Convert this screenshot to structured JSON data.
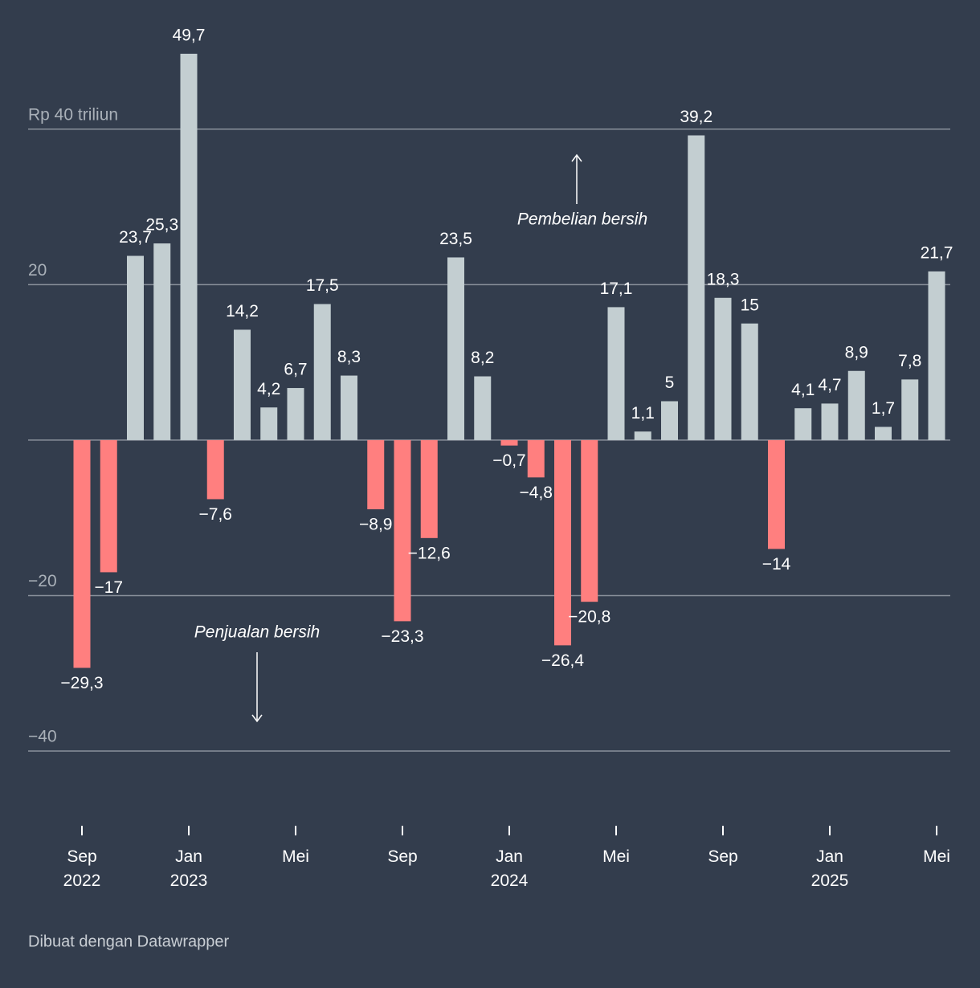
{
  "chart_data": {
    "type": "bar",
    "categories": [
      "Sep 2022",
      null,
      null,
      null,
      "Jan 2023",
      null,
      null,
      null,
      "Mei",
      null,
      null,
      null,
      "Sep",
      null,
      null,
      null,
      "Jan 2024",
      null,
      null,
      null,
      "Mei",
      null,
      null,
      null,
      "Sep",
      null,
      null,
      null,
      "Jan 2025",
      null,
      null,
      null,
      "Mei"
    ],
    "values": [
      -29.3,
      -17,
      23.7,
      25.3,
      49.7,
      -7.6,
      14.2,
      4.2,
      6.7,
      17.5,
      8.3,
      -8.9,
      -23.3,
      -12.6,
      23.5,
      8.2,
      -0.7,
      -4.8,
      -26.4,
      -20.8,
      17.1,
      1.1,
      5,
      39.2,
      18.3,
      15,
      -14,
      4.1,
      4.7,
      8.9,
      1.7,
      7.8,
      21.7
    ],
    "value_labels": [
      "−29,3",
      "−17",
      "23,7",
      "25,3",
      "49,7",
      "−7,6",
      "14,2",
      "4,2",
      "6,7",
      "17,5",
      "8,3",
      "−8,9",
      "−23,3",
      "−12,6",
      "23,5",
      "8,2",
      "−0,7",
      "−4,8",
      "−26,4",
      "−20,8",
      "17,1",
      "1,1",
      "5",
      "39,2",
      "18,3",
      "15",
      "−14",
      "4,1",
      "4,7",
      "8,9",
      "1,7",
      "7,8",
      "21,7"
    ],
    "color": "#c3ced1",
    "negative_color": "#ff7f7f",
    "ylim": [
      -40,
      50
    ],
    "yticks": [
      {
        "value": -40,
        "label": "−40"
      },
      {
        "value": -20,
        "label": "−20"
      },
      20,
      {
        "value": 40,
        "label": "Rp 40 triliun"
      }
    ],
    "grid": true,
    "annotations": [
      "Pembelian bersih",
      "Penjualan bersih"
    ],
    "footer": "Dibuat dengan Datawrapper"
  }
}
